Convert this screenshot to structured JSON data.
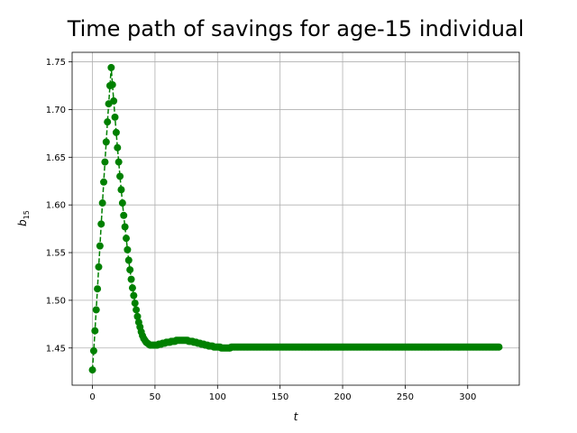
{
  "chart_data": {
    "type": "line",
    "title": "Time path of savings for age-15 individual",
    "xlabel": "t",
    "ylabel": {
      "base": "b",
      "subscript": "15"
    },
    "color": "#008000",
    "grid": true,
    "xlim": [
      -16.25,
      341.25
    ],
    "ylim": [
      1.411,
      1.76
    ],
    "xticks": [
      0,
      50,
      100,
      150,
      200,
      250,
      300
    ],
    "yticks": [
      1.45,
      {
        "value": 1.5,
        "label": "1.50"
      },
      1.55,
      {
        "value": 1.6,
        "label": "1.60"
      },
      1.65,
      {
        "value": 1.7,
        "label": "1.70"
      },
      1.75
    ],
    "x": [
      0,
      1,
      2,
      3,
      4,
      5,
      6,
      7,
      8,
      9,
      10,
      11,
      12,
      13,
      14,
      15,
      16,
      17,
      18,
      19,
      20,
      21,
      22,
      23,
      24,
      25,
      26,
      27,
      28,
      29,
      30,
      31,
      32,
      33,
      34,
      35,
      36,
      37,
      38,
      39,
      40,
      41,
      42,
      43,
      44,
      45,
      46,
      47,
      48,
      49,
      50,
      51,
      52,
      53,
      54,
      55,
      56,
      57,
      58,
      59,
      60,
      61,
      62,
      63,
      64,
      65,
      66,
      67,
      68,
      69,
      70,
      71,
      72,
      73,
      74,
      75,
      76,
      77,
      78,
      79,
      80,
      81,
      82,
      83,
      84,
      85,
      86,
      87,
      88,
      89,
      90,
      91,
      92,
      93,
      94,
      95,
      96,
      97,
      98,
      99,
      100,
      101,
      102,
      103,
      104,
      105,
      106,
      107,
      108,
      109,
      110,
      111,
      112,
      113,
      114,
      115,
      116,
      117,
      118,
      119,
      120,
      121,
      122,
      123,
      124,
      125,
      126,
      127,
      128,
      129,
      130,
      131,
      132,
      133,
      134,
      135,
      136,
      137,
      138,
      139,
      140,
      141,
      142,
      143,
      144,
      145,
      146,
      147,
      148,
      149,
      150,
      151,
      152,
      153,
      154,
      155,
      156,
      157,
      158,
      159,
      160,
      161,
      162,
      163,
      164,
      165,
      166,
      167,
      168,
      169,
      170,
      171,
      172,
      173,
      174,
      175,
      176,
      177,
      178,
      179,
      180,
      181,
      182,
      183,
      184,
      185,
      186,
      187,
      188,
      189,
      190,
      191,
      192,
      193,
      194,
      195,
      196,
      197,
      198,
      199,
      200,
      201,
      202,
      203,
      204,
      205,
      206,
      207,
      208,
      209,
      210,
      211,
      212,
      213,
      214,
      215,
      216,
      217,
      218,
      219,
      220,
      221,
      222,
      223,
      224,
      225,
      226,
      227,
      228,
      229,
      230,
      231,
      232,
      233,
      234,
      235,
      236,
      237,
      238,
      239,
      240,
      241,
      242,
      243,
      244,
      245,
      246,
      247,
      248,
      249,
      250,
      251,
      252,
      253,
      254,
      255,
      256,
      257,
      258,
      259,
      260,
      261,
      262,
      263,
      264,
      265,
      266,
      267,
      268,
      269,
      270,
      271,
      272,
      273,
      274,
      275,
      276,
      277,
      278,
      279,
      280,
      281,
      282,
      283,
      284,
      285,
      286,
      287,
      288,
      289,
      290,
      291,
      292,
      293,
      294,
      295,
      296,
      297,
      298,
      299,
      300,
      301,
      302,
      303,
      304,
      305,
      306,
      307,
      308,
      309,
      310,
      311,
      312,
      313,
      314,
      315,
      316,
      317,
      318,
      319,
      320,
      321,
      322,
      323,
      324,
      325
    ],
    "values": [
      1.427,
      1.447,
      1.468,
      1.49,
      1.512,
      1.535,
      1.557,
      1.58,
      1.602,
      1.624,
      1.645,
      1.666,
      1.687,
      1.706,
      1.725,
      1.744,
      1.726,
      1.709,
      1.692,
      1.676,
      1.66,
      1.645,
      1.63,
      1.616,
      1.602,
      1.589,
      1.577,
      1.565,
      1.553,
      1.542,
      1.532,
      1.522,
      1.513,
      1.505,
      1.497,
      1.49,
      1.483,
      1.477,
      1.472,
      1.467,
      1.463,
      1.46,
      1.458,
      1.456,
      1.455,
      1.454,
      1.453,
      1.453,
      1.453,
      1.453,
      1.453,
      1.453,
      1.453,
      1.454,
      1.454,
      1.454,
      1.455,
      1.455,
      1.455,
      1.456,
      1.456,
      1.456,
      1.456,
      1.457,
      1.457,
      1.457,
      1.457,
      1.458,
      1.458,
      1.458,
      1.458,
      1.458,
      1.458,
      1.458,
      1.458,
      1.458,
      1.458,
      1.457,
      1.457,
      1.457,
      1.457,
      1.456,
      1.456,
      1.456,
      1.455,
      1.455,
      1.455,
      1.454,
      1.454,
      1.454,
      1.453,
      1.453,
      1.453,
      1.452,
      1.452,
      1.452,
      1.452,
      1.451,
      1.451,
      1.451,
      1.451,
      1.451,
      1.451,
      1.45,
      1.45,
      1.45,
      1.45,
      1.45,
      1.45,
      1.45,
      1.45,
      1.451,
      1.451,
      1.451,
      1.451,
      1.451,
      1.451,
      1.451,
      1.451,
      1.451,
      1.451,
      1.451,
      1.451,
      1.451,
      1.451,
      1.451,
      1.451,
      1.451,
      1.451,
      1.451,
      1.451,
      1.451,
      1.451,
      1.451,
      1.451,
      1.451,
      1.451,
      1.451,
      1.451,
      1.451,
      1.451,
      1.451,
      1.451,
      1.451,
      1.451,
      1.451,
      1.451,
      1.451,
      1.451,
      1.451,
      1.451,
      1.451,
      1.451,
      1.451,
      1.451,
      1.451,
      1.451,
      1.451,
      1.451,
      1.451,
      1.451,
      1.451,
      1.451,
      1.451,
      1.451,
      1.451,
      1.451,
      1.451,
      1.451,
      1.451,
      1.451,
      1.451,
      1.451,
      1.451,
      1.451,
      1.451,
      1.451,
      1.451,
      1.451,
      1.451,
      1.451,
      1.451,
      1.451,
      1.451,
      1.451,
      1.451,
      1.451,
      1.451,
      1.451,
      1.451,
      1.451,
      1.451,
      1.451,
      1.451,
      1.451,
      1.451,
      1.451,
      1.451,
      1.451,
      1.451,
      1.451,
      1.451,
      1.451,
      1.451,
      1.451,
      1.451,
      1.451,
      1.451,
      1.451,
      1.451,
      1.451,
      1.451,
      1.451,
      1.451,
      1.451,
      1.451,
      1.451,
      1.451,
      1.451,
      1.451,
      1.451,
      1.451,
      1.451,
      1.451,
      1.451,
      1.451,
      1.451,
      1.451,
      1.451,
      1.451,
      1.451,
      1.451,
      1.451,
      1.451,
      1.451,
      1.451,
      1.451,
      1.451,
      1.451,
      1.451,
      1.451,
      1.451,
      1.451,
      1.451,
      1.451,
      1.451,
      1.451,
      1.451,
      1.451,
      1.451,
      1.451,
      1.451,
      1.451,
      1.451,
      1.451,
      1.451,
      1.451,
      1.451,
      1.451,
      1.451,
      1.451,
      1.451,
      1.451,
      1.451,
      1.451,
      1.451,
      1.451,
      1.451,
      1.451,
      1.451,
      1.451,
      1.451,
      1.451,
      1.451,
      1.451,
      1.451,
      1.451,
      1.451,
      1.451,
      1.451,
      1.451,
      1.451,
      1.451,
      1.451,
      1.451,
      1.451,
      1.451,
      1.451,
      1.451,
      1.451,
      1.451,
      1.451,
      1.451,
      1.451,
      1.451,
      1.451,
      1.451,
      1.451,
      1.451,
      1.451,
      1.451,
      1.451,
      1.451,
      1.451,
      1.451,
      1.451,
      1.451,
      1.451,
      1.451,
      1.451,
      1.451,
      1.451,
      1.451,
      1.451,
      1.451,
      1.451,
      1.451,
      1.451,
      1.451,
      1.451,
      1.451,
      1.451,
      1.451,
      1.451,
      1.451,
      1.451
    ]
  }
}
